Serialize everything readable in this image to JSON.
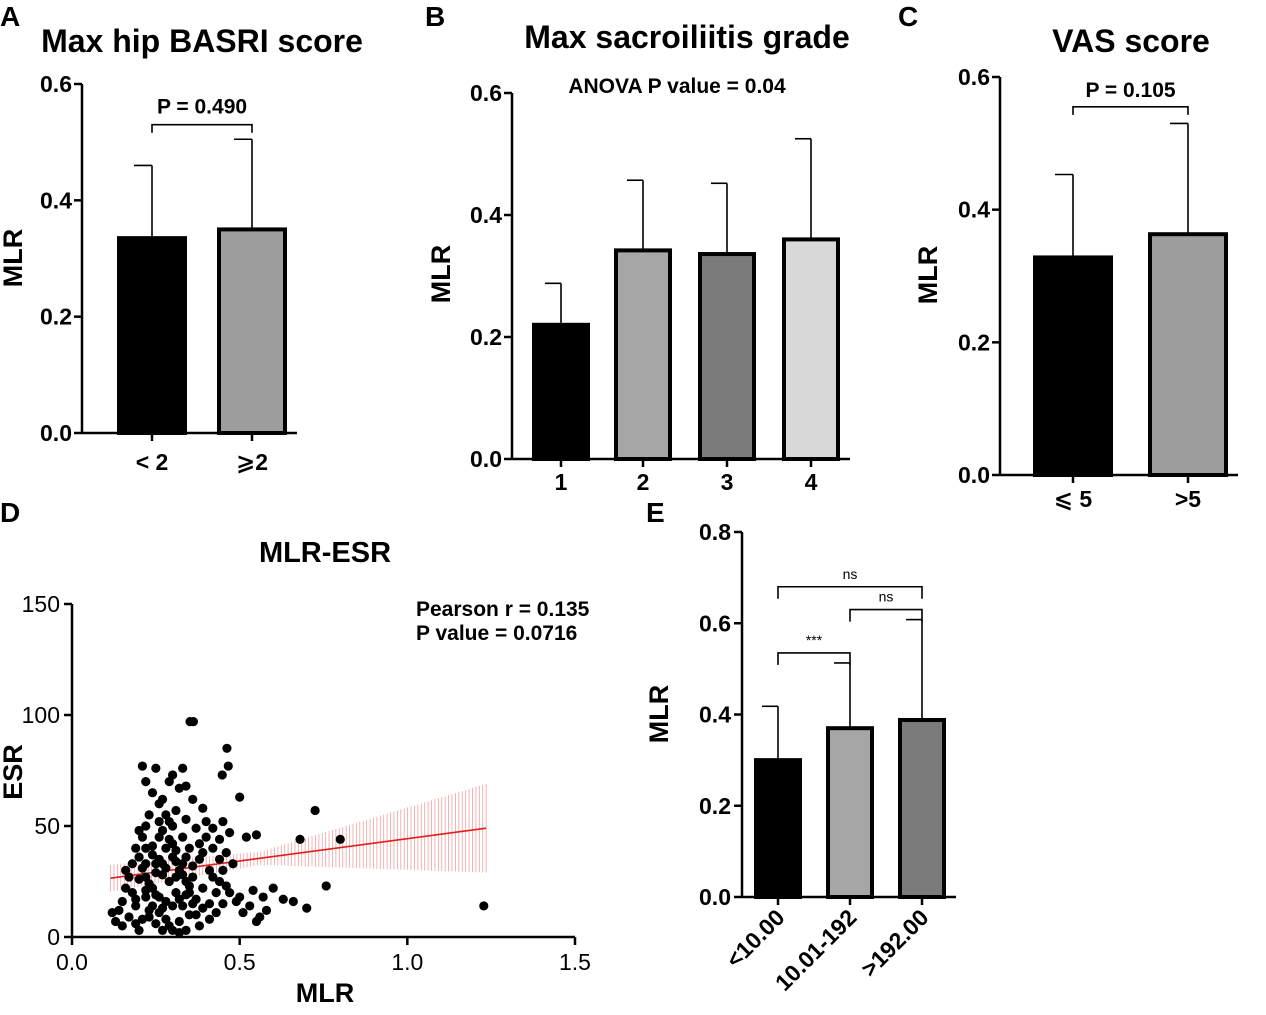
{
  "panels": {
    "A": {
      "letter": "A"
    },
    "B": {
      "letter": "B"
    },
    "C": {
      "letter": "C"
    },
    "D": {
      "letter": "D"
    },
    "E": {
      "letter": "E"
    }
  },
  "chart_data": [
    {
      "id": "A",
      "type": "bar",
      "title": "Max hip BASRI score",
      "xlabel": "",
      "ylabel": "MLR",
      "ylim": [
        0,
        0.6
      ],
      "yticks": [
        "0.0",
        "0.2",
        "0.4",
        "0.6"
      ],
      "categories": [
        "< 2",
        "⩾2"
      ],
      "values": [
        0.335,
        0.35
      ],
      "errors": [
        0.125,
        0.155
      ],
      "colors": [
        "#000000",
        "#9d9d9d"
      ],
      "annotations": [
        {
          "text": "P = 0.490",
          "from": 0,
          "to": 1,
          "level": 0.53
        }
      ]
    },
    {
      "id": "B",
      "type": "bar",
      "title": "Max sacroiliitis grade",
      "xlabel": "",
      "ylabel": "MLR",
      "ylim": [
        0,
        0.6
      ],
      "yticks": [
        "0.0",
        "0.2",
        "0.4",
        "0.6"
      ],
      "categories": [
        "1",
        "2",
        "3",
        "4"
      ],
      "values": [
        0.22,
        0.342,
        0.336,
        0.36
      ],
      "errors": [
        0.068,
        0.115,
        0.116,
        0.165
      ],
      "colors": [
        "#000000",
        "#a6a6a6",
        "#7b7b7b",
        "#d8d8d8"
      ],
      "note": "ANOVA P value = 0.04"
    },
    {
      "id": "C",
      "type": "bar",
      "title": "VAS score",
      "xlabel": "",
      "ylabel": "MLR",
      "ylim": [
        0,
        0.6
      ],
      "yticks": [
        "0.0",
        "0.2",
        "0.4",
        "0.6"
      ],
      "categories": [
        "⩽ 5",
        ">5"
      ],
      "values": [
        0.328,
        0.363
      ],
      "errors": [
        0.125,
        0.167
      ],
      "colors": [
        "#000000",
        "#9d9d9d"
      ],
      "annotations": [
        {
          "text": "P = 0.105",
          "from": 0,
          "to": 1,
          "level": 0.555
        }
      ]
    },
    {
      "id": "D",
      "type": "scatter",
      "title": "MLR-ESR",
      "xlabel": "MLR",
      "ylabel": "ESR",
      "xlim": [
        0,
        1.5
      ],
      "ylim": [
        0,
        150
      ],
      "xticks": [
        "0.0",
        "0.5",
        "1.0",
        "1.5"
      ],
      "yticks": [
        "0",
        "50",
        "100",
        "150"
      ],
      "stats": [
        "Pearson r = 0.135",
        "P value = 0.0716"
      ],
      "regression": {
        "x0": 0.115,
        "y0": 26.5,
        "x1": 1.235,
        "y1": 49
      },
      "ci_halfwidth": {
        "start": 6,
        "mid": 3,
        "end": 20
      },
      "points": [
        [
          1.228,
          14
        ],
        [
          0.352,
          97
        ],
        [
          0.362,
          97
        ],
        [
          0.8,
          44
        ],
        [
          0.725,
          57
        ],
        [
          0.68,
          44
        ],
        [
          0.758,
          23
        ],
        [
          0.462,
          85
        ],
        [
          0.466,
          77
        ],
        [
          0.448,
          73
        ],
        [
          0.5,
          63
        ],
        [
          0.52,
          45
        ],
        [
          0.55,
          46
        ],
        [
          0.6,
          22
        ],
        [
          0.63,
          17
        ],
        [
          0.66,
          16
        ],
        [
          0.7,
          13
        ],
        [
          0.58,
          12
        ],
        [
          0.56,
          9
        ],
        [
          0.55,
          7
        ],
        [
          0.53,
          14
        ],
        [
          0.5,
          18
        ],
        [
          0.47,
          20
        ],
        [
          0.44,
          25
        ],
        [
          0.41,
          30
        ],
        [
          0.38,
          35
        ],
        [
          0.35,
          40
        ],
        [
          0.33,
          45
        ],
        [
          0.3,
          50
        ],
        [
          0.28,
          55
        ],
        [
          0.26,
          60
        ],
        [
          0.24,
          65
        ],
        [
          0.22,
          70
        ],
        [
          0.21,
          77
        ],
        [
          0.25,
          76
        ],
        [
          0.3,
          73
        ],
        [
          0.33,
          76
        ],
        [
          0.32,
          67
        ],
        [
          0.27,
          62
        ],
        [
          0.23,
          55
        ],
        [
          0.2,
          48
        ],
        [
          0.19,
          40
        ],
        [
          0.18,
          33
        ],
        [
          0.17,
          27
        ],
        [
          0.16,
          22
        ],
        [
          0.15,
          16
        ],
        [
          0.14,
          12
        ],
        [
          0.12,
          11
        ],
        [
          0.13,
          7
        ],
        [
          0.15,
          5
        ],
        [
          0.17,
          9
        ],
        [
          0.19,
          14
        ],
        [
          0.2,
          3
        ],
        [
          0.22,
          18
        ],
        [
          0.23,
          24
        ],
        [
          0.25,
          29
        ],
        [
          0.26,
          35
        ],
        [
          0.28,
          40
        ],
        [
          0.29,
          44
        ],
        [
          0.31,
          39
        ],
        [
          0.32,
          30
        ],
        [
          0.34,
          25
        ],
        [
          0.35,
          20
        ],
        [
          0.36,
          15
        ],
        [
          0.37,
          10
        ],
        [
          0.38,
          5
        ],
        [
          0.3,
          3
        ],
        [
          0.28,
          8
        ],
        [
          0.27,
          13
        ],
        [
          0.26,
          18
        ],
        [
          0.24,
          22
        ],
        [
          0.22,
          27
        ],
        [
          0.21,
          31
        ],
        [
          0.2,
          36
        ],
        [
          0.24,
          41
        ],
        [
          0.26,
          45
        ],
        [
          0.29,
          52
        ],
        [
          0.31,
          57
        ],
        [
          0.34,
          53
        ],
        [
          0.37,
          49
        ],
        [
          0.4,
          45
        ],
        [
          0.42,
          40
        ],
        [
          0.44,
          35
        ],
        [
          0.45,
          30
        ],
        [
          0.43,
          20
        ],
        [
          0.41,
          15
        ],
        [
          0.39,
          22
        ],
        [
          0.36,
          27
        ],
        [
          0.33,
          33
        ],
        [
          0.3,
          36
        ],
        [
          0.27,
          28
        ],
        [
          0.25,
          19
        ],
        [
          0.23,
          12
        ],
        [
          0.21,
          8
        ],
        [
          0.19,
          6
        ],
        [
          0.18,
          20
        ],
        [
          0.16,
          30
        ],
        [
          0.2,
          26
        ],
        [
          0.22,
          33
        ],
        [
          0.24,
          37
        ],
        [
          0.27,
          33
        ],
        [
          0.29,
          25
        ],
        [
          0.31,
          20
        ],
        [
          0.33,
          14
        ],
        [
          0.35,
          10
        ],
        [
          0.32,
          7
        ],
        [
          0.29,
          5
        ],
        [
          0.27,
          3
        ],
        [
          0.25,
          6
        ],
        [
          0.23,
          9
        ],
        [
          0.26,
          11
        ],
        [
          0.28,
          16
        ],
        [
          0.3,
          14
        ],
        [
          0.32,
          17
        ],
        [
          0.34,
          19
        ],
        [
          0.36,
          32
        ],
        [
          0.38,
          42
        ],
        [
          0.4,
          52
        ],
        [
          0.42,
          49
        ],
        [
          0.44,
          44
        ],
        [
          0.46,
          38
        ],
        [
          0.48,
          33
        ],
        [
          0.47,
          47
        ],
        [
          0.45,
          52
        ],
        [
          0.39,
          58
        ],
        [
          0.36,
          62
        ],
        [
          0.34,
          68
        ],
        [
          0.29,
          70
        ],
        [
          0.45,
          15
        ],
        [
          0.43,
          11
        ],
        [
          0.41,
          8
        ],
        [
          0.39,
          13
        ],
        [
          0.37,
          17
        ],
        [
          0.35,
          23
        ],
        [
          0.31,
          27
        ],
        [
          0.28,
          31
        ],
        [
          0.25,
          33
        ],
        [
          0.22,
          40
        ],
        [
          0.21,
          45
        ],
        [
          0.22,
          50
        ],
        [
          0.26,
          52
        ],
        [
          0.27,
          48
        ],
        [
          0.3,
          42
        ],
        [
          0.31,
          34
        ],
        [
          0.33,
          28
        ],
        [
          0.34,
          36
        ],
        [
          0.39,
          38
        ],
        [
          0.42,
          27
        ],
        [
          0.46,
          23
        ],
        [
          0.49,
          16
        ],
        [
          0.51,
          11
        ],
        [
          0.54,
          21
        ],
        [
          0.57,
          18
        ],
        [
          0.32,
          2
        ],
        [
          0.34,
          3
        ],
        [
          0.24,
          14
        ],
        [
          0.22,
          21
        ],
        [
          0.19,
          17
        ]
      ]
    },
    {
      "id": "E",
      "type": "bar",
      "title": "",
      "xlabel": "",
      "ylabel": "MLR",
      "ylim": [
        0,
        0.8
      ],
      "yticks": [
        "0.0",
        "0.2",
        "0.4",
        "0.6",
        "0.8"
      ],
      "categories": [
        "<10.00",
        "10.01-192",
        ">192.00"
      ],
      "values": [
        0.3,
        0.37,
        0.388
      ],
      "errors": [
        0.118,
        0.143,
        0.22
      ],
      "colors": [
        "#000000",
        "#a6a6a6",
        "#7b7b7b"
      ],
      "annotations": [
        {
          "text": "***",
          "from": 0,
          "to": 1,
          "level": 0.535
        },
        {
          "text": "ns",
          "from": 1,
          "to": 2,
          "level": 0.63
        },
        {
          "text": "ns",
          "from": 0,
          "to": 2,
          "level": 0.68
        }
      ]
    }
  ]
}
